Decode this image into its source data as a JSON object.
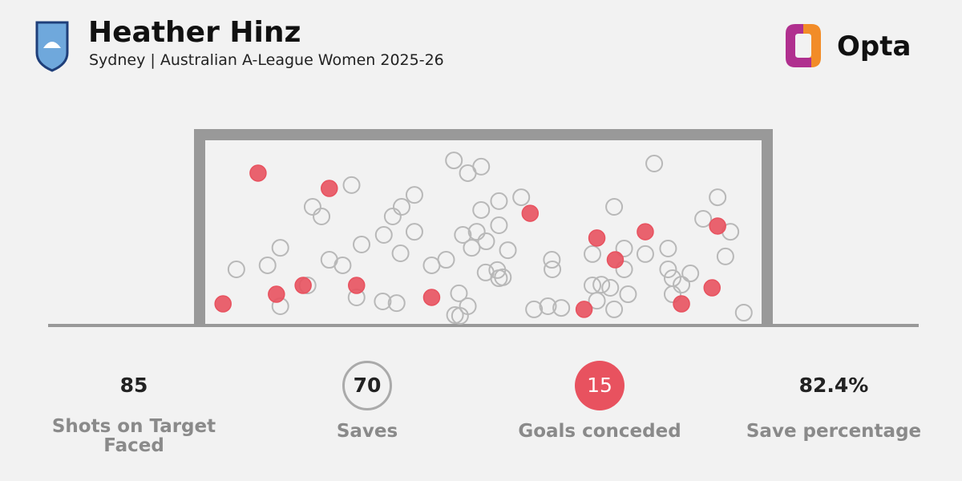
{
  "header": {
    "title": "Heather Hinz",
    "subtitle": "Sydney | Australian A-League Women 2025-26",
    "brand": "Opta"
  },
  "chart_data": {
    "type": "scatter",
    "series": [
      {
        "color": "#b8b8b8",
        "x": [
          5.6,
          11.2,
          13.5,
          13.5,
          18.4,
          19.3,
          20.9,
          22.3,
          24.7,
          26.3,
          27.2,
          28.1,
          31.9,
          32.1,
          33.7,
          34.4,
          35.1,
          35.3,
          37.6,
          37.6,
          40.7,
          43.3,
          44.7,
          47.2,
          49.6,
          45.6,
          47.2,
          44.9,
          45.8,
          46.3,
          47.9,
          48.8,
          49.6,
          50.5,
          50.4,
          52.8,
          52.8,
          52.5,
          53.5,
          52.8,
          54.4,
          56.8,
          59.1,
          61.6,
          62.3,
          62.4,
          69.6,
          69.6,
          70.4,
          71.2,
          72.8,
          73.5,
          73.5,
          75.3,
          75.3,
          76.0,
          79.1,
          80.7,
          83.2,
          83.2,
          84.0,
          84.0,
          85.6,
          87.2,
          89.5,
          92.1,
          94.4,
          93.5,
          96.8,
          64.0
        ],
        "y": [
          30.0,
          32.2,
          41.7,
          10.0,
          21.3,
          63.9,
          58.7,
          35.2,
          32.2,
          75.7,
          14.8,
          43.5,
          12.6,
          48.7,
          58.7,
          11.7,
          38.7,
          63.9,
          70.4,
          50.4,
          32.2,
          35.2,
          89.1,
          82.2,
          85.7,
          17.0,
          10.0,
          5.2,
          4.8,
          48.7,
          41.7,
          50.4,
          62.2,
          45.2,
          28.3,
          67.0,
          53.9,
          29.6,
          25.7,
          25.2,
          40.4,
          69.1,
          8.3,
          10.0,
          35.2,
          30.0,
          21.3,
          38.3,
          13.0,
          21.7,
          20.0,
          63.9,
          8.3,
          41.3,
          30.0,
          16.5,
          38.3,
          87.4,
          41.3,
          30.0,
          25.2,
          16.5,
          21.7,
          27.8,
          57.4,
          69.1,
          50.4,
          37.0,
          6.5,
          9.1
        ]
      },
      {
        "color": "#e8525f",
        "x": [
          9.5,
          22.3,
          3.2,
          12.8,
          17.6,
          27.2,
          40.7,
          58.4,
          70.4,
          73.7,
          79.1,
          92.1,
          91.1,
          85.6,
          68.1
        ],
        "y": [
          82.2,
          73.9,
          11.3,
          16.5,
          21.3,
          21.3,
          14.8,
          60.4,
          47.0,
          35.2,
          50.4,
          53.5,
          20.0,
          11.3,
          8.3
        ]
      }
    ]
  },
  "stats": [
    {
      "value": 85,
      "label": "Shots on Target Faced"
    },
    {
      "value": 70,
      "label": "Saves"
    },
    {
      "value": 15,
      "label": "Goals conceded"
    },
    {
      "value": 82.4,
      "value_label": "82.4%",
      "label": "Save percentage"
    }
  ]
}
